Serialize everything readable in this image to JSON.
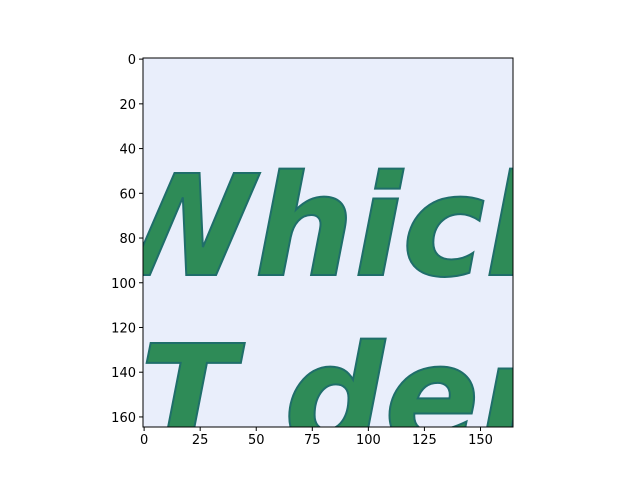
{
  "chart_data": {
    "type": "image",
    "image_texts": [
      "Whiche",
      "T den"
    ],
    "xlim": [
      -0.5,
      164.5
    ],
    "ylim": [
      164.5,
      -0.5
    ],
    "xticks": [
      0,
      25,
      50,
      75,
      100,
      125,
      150
    ],
    "yticks": [
      0,
      20,
      40,
      60,
      80,
      100,
      120,
      140,
      160
    ],
    "background": "#e9eefb",
    "text_color": "#2e8b57"
  }
}
